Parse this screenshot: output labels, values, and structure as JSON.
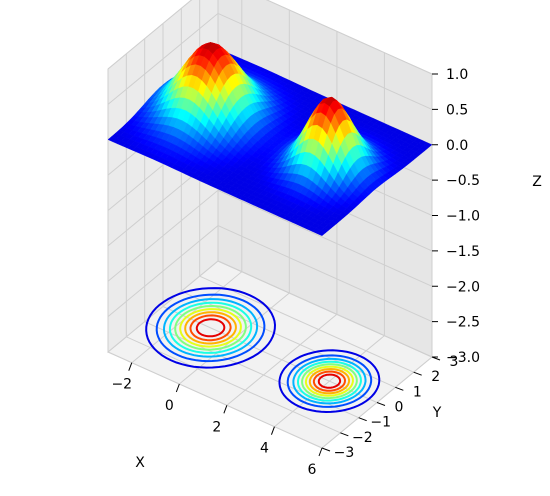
{
  "chart_data": {
    "type": "surface3d",
    "title": "",
    "xlabel": "X",
    "ylabel": "Y",
    "zlabel": "Z",
    "xlim": [
      -3,
      6
    ],
    "ylim": [
      -3,
      3
    ],
    "zlim": [
      -3,
      1
    ],
    "x_ticks": [
      "−2",
      "0",
      "2",
      "4",
      "6"
    ],
    "y_ticks": [
      "−3",
      "−2",
      "−1",
      "0",
      "1",
      "2",
      "3"
    ],
    "z_ticks": [
      "−3.0",
      "−2.5",
      "−2.0",
      "−1.5",
      "−1.0",
      "−0.5",
      "0.0",
      "0.5",
      "1.0"
    ],
    "surface": {
      "formula": "exp(-((x+1)^2 + y^2)/2) + exp(-((x-4)^2 + y^2)/1.2)",
      "x_range": [
        -3,
        6
      ],
      "y_range": [
        -3,
        3
      ],
      "peaks": [
        {
          "x": -1,
          "y": 0,
          "z": 1.0
        },
        {
          "x": 4,
          "y": 0,
          "z": 1.0
        }
      ],
      "colormap": "jet",
      "z_offset_contours": -3.0
    },
    "contour_levels": [
      0.1,
      0.2,
      0.3,
      0.4,
      0.5,
      0.6,
      0.7,
      0.8,
      0.9
    ],
    "grid": true
  }
}
